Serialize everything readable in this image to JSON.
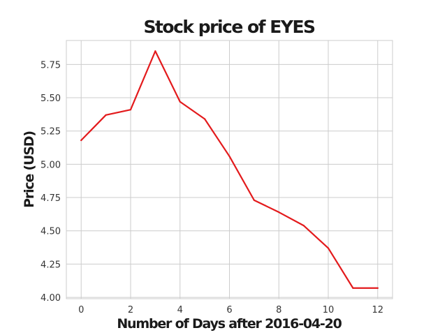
{
  "chart_data": {
    "type": "line",
    "title": "Stock price of EYES",
    "xlabel": "Number of Days after 2016-04-20",
    "ylabel": "Price (USD)",
    "x": [
      0,
      1,
      2,
      3,
      4,
      5,
      6,
      7,
      8,
      9,
      10,
      11,
      12
    ],
    "series": [
      {
        "values": [
          5.18,
          5.37,
          5.41,
          5.85,
          5.47,
          5.34,
          5.06,
          4.73,
          4.64,
          4.54,
          4.37,
          4.07,
          4.07
        ],
        "color": "#e31a1c"
      }
    ],
    "xlim": [
      -0.6,
      12.6
    ],
    "ylim": [
      3.99,
      5.93
    ],
    "xticks": [
      0,
      2,
      4,
      6,
      8,
      10,
      12
    ],
    "yticks": [
      4.0,
      4.25,
      4.5,
      4.75,
      5.0,
      5.25,
      5.5,
      5.75
    ],
    "ytick_labels": [
      "4.00",
      "4.25",
      "4.50",
      "4.75",
      "5.00",
      "5.25",
      "5.50",
      "5.75"
    ],
    "xtick_labels": [
      "0",
      "2",
      "4",
      "6",
      "8",
      "10",
      "12"
    ],
    "grid": true,
    "legend": "none"
  }
}
